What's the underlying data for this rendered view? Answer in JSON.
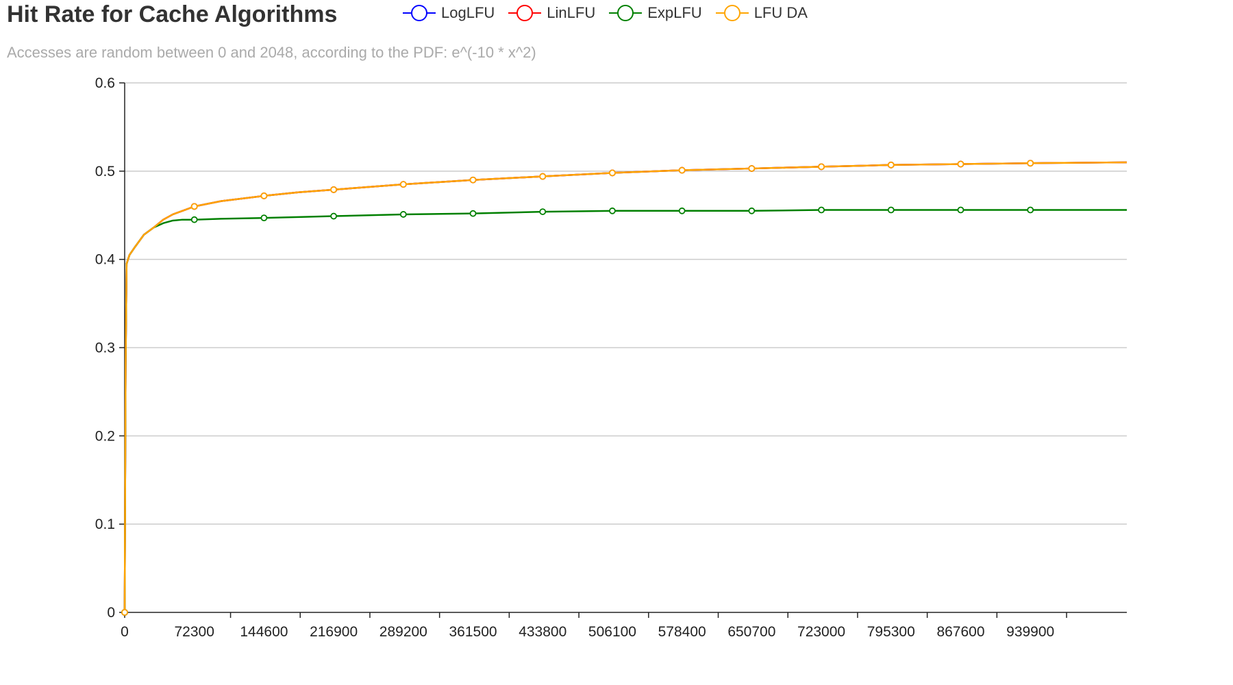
{
  "chart_data": {
    "type": "line",
    "title": "Hit Rate for Cache Algorithms",
    "subtitle": "Accesses are random between 0 and 2048, according to the PDF: e^(-10 * x^2)",
    "xlabel": "",
    "ylabel": "",
    "xlim": [
      0,
      1040000
    ],
    "ylim": [
      0,
      0.6
    ],
    "grid": true,
    "legend_position": "top",
    "x_ticks": [
      0,
      72300,
      144600,
      216900,
      289200,
      361500,
      433800,
      506100,
      578400,
      650700,
      723000,
      795300,
      867600,
      939900
    ],
    "y_ticks": [
      0,
      0.1,
      0.2,
      0.3,
      0.4,
      0.5,
      0.6
    ],
    "x": [
      0,
      1000,
      2000,
      5000,
      10000,
      20000,
      30000,
      40000,
      50000,
      60000,
      72300,
      100000,
      144600,
      180000,
      216900,
      289200,
      361500,
      433800,
      506100,
      578400,
      650700,
      723000,
      795300,
      867600,
      939900,
      1040000
    ],
    "series": [
      {
        "name": "LogLFU",
        "color": "#0000ff",
        "values": [
          0,
          0.28,
          0.395,
          0.405,
          0.413,
          0.428,
          0.436,
          0.445,
          0.451,
          0.455,
          0.46,
          0.466,
          0.472,
          0.476,
          0.479,
          0.485,
          0.49,
          0.494,
          0.498,
          0.501,
          0.503,
          0.505,
          0.507,
          0.508,
          0.509,
          0.51
        ]
      },
      {
        "name": "LinLFU",
        "color": "#ff0000",
        "values": [
          0,
          0.28,
          0.395,
          0.405,
          0.413,
          0.428,
          0.436,
          0.445,
          0.451,
          0.455,
          0.46,
          0.466,
          0.472,
          0.476,
          0.479,
          0.485,
          0.49,
          0.494,
          0.498,
          0.501,
          0.503,
          0.505,
          0.507,
          0.508,
          0.509,
          0.51
        ]
      },
      {
        "name": "ExpLFU",
        "color": "#008000",
        "values": [
          0,
          0.28,
          0.395,
          0.405,
          0.413,
          0.428,
          0.436,
          0.441,
          0.444,
          0.445,
          0.445,
          0.446,
          0.447,
          0.448,
          0.449,
          0.451,
          0.452,
          0.454,
          0.455,
          0.455,
          0.455,
          0.456,
          0.456,
          0.456,
          0.456,
          0.456
        ]
      },
      {
        "name": "LFU DA",
        "color": "#ffa500",
        "values": [
          0,
          0.28,
          0.395,
          0.405,
          0.413,
          0.428,
          0.436,
          0.445,
          0.451,
          0.455,
          0.46,
          0.466,
          0.472,
          0.476,
          0.479,
          0.485,
          0.49,
          0.494,
          0.498,
          0.501,
          0.503,
          0.505,
          0.507,
          0.508,
          0.509,
          0.51
        ]
      }
    ]
  }
}
